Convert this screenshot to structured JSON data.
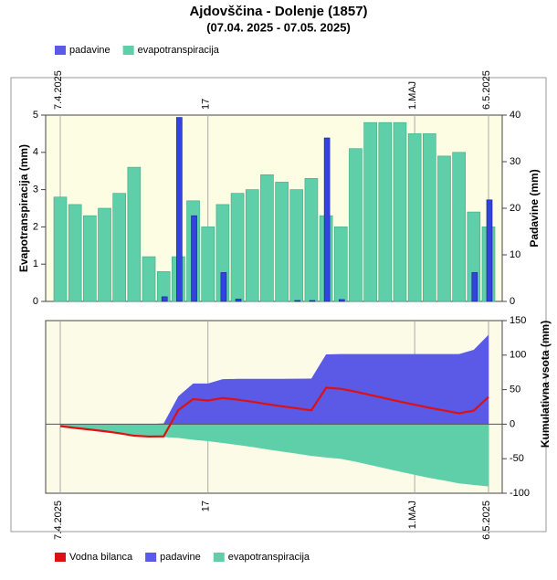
{
  "chart_data": [
    {
      "type": "bar",
      "title": "Ajdovščina - Dolenje (1857)",
      "subtitle": "(07.04. 2025 - 07.05. 2025)",
      "ylabel": "Evapotranspiracija (mm)",
      "y2label": "Padavine (mm)",
      "categories": [
        "7.4.2025",
        null,
        null,
        null,
        null,
        null,
        null,
        null,
        null,
        null,
        "17",
        null,
        null,
        null,
        null,
        null,
        null,
        null,
        null,
        null,
        null,
        null,
        null,
        null,
        "1.MAJ",
        null,
        null,
        null,
        null,
        "6.5.2025"
      ],
      "series": [
        {
          "name": "padavine",
          "color": "#5a5ae6",
          "axis": "y2",
          "values": [
            0,
            0,
            0,
            0,
            0,
            0,
            0,
            1,
            39.5,
            18.4,
            0,
            6.2,
            0.5,
            0,
            0,
            0,
            0.2,
            0.2,
            35.1,
            0.4,
            0,
            0,
            0,
            0,
            0,
            0,
            0,
            0,
            6.2,
            21.8
          ]
        },
        {
          "name": "evapotranspiracija",
          "color": "#5fcfaa",
          "values": [
            2.8,
            2.6,
            2.3,
            2.5,
            2.9,
            3.6,
            1.2,
            0.8,
            1.2,
            2.7,
            2.0,
            2.6,
            2.9,
            3.0,
            3.4,
            3.2,
            3.0,
            3.3,
            2.3,
            2.0,
            4.1,
            4.8,
            4.8,
            4.8,
            4.5,
            4.5,
            3.9,
            4.0,
            2.4,
            2.0
          ]
        }
      ],
      "ylim": [
        0,
        5
      ],
      "yticks": [
        0,
        1,
        2,
        3,
        4,
        5
      ],
      "y2lim": [
        0,
        40
      ],
      "y2ticks": [
        0,
        10,
        20,
        30,
        40
      ],
      "legend": "top"
    },
    {
      "type": "area",
      "ylabel": "Kumulativna vsota (mm)",
      "yaxis_side": "right",
      "categories": [
        "7.4.2025",
        null,
        null,
        null,
        null,
        null,
        null,
        null,
        null,
        null,
        "17",
        null,
        null,
        null,
        null,
        null,
        null,
        null,
        null,
        null,
        null,
        null,
        null,
        null,
        "1.MAJ",
        null,
        null,
        null,
        null,
        "6.5.2025"
      ],
      "series": [
        {
          "name": "Vodna bilanca",
          "color": "#e01010",
          "style": "line",
          "values": [
            -2.8,
            -5.4,
            -7.7,
            -10.2,
            -13.1,
            -16.7,
            -17.9,
            -17.7,
            20.6,
            36.3,
            34.3,
            37.9,
            35.5,
            32.5,
            29.1,
            25.9,
            23.1,
            20,
            52.8,
            51.2,
            47.1,
            42.3,
            37.5,
            32.7,
            28.2,
            23.7,
            19.8,
            15.8,
            19.6,
            39.4
          ]
        },
        {
          "name": "padavine",
          "color": "#5a5ae6",
          "style": "area",
          "values": [
            0,
            0,
            0,
            0,
            0,
            0,
            0,
            1,
            40.5,
            58.9,
            58.9,
            65.1,
            65.6,
            65.6,
            65.6,
            65.6,
            65.8,
            66,
            101.1,
            101.5,
            101.5,
            101.5,
            101.5,
            101.5,
            101.5,
            101.5,
            101.5,
            101.5,
            107.7,
            129.5
          ]
        },
        {
          "name": "evapotranspiracija",
          "color": "#5fcfaa",
          "style": "area",
          "values": [
            -2.8,
            -5.4,
            -7.7,
            -10.2,
            -13.1,
            -16.7,
            -17.9,
            -18.7,
            -19.9,
            -22.6,
            -24.6,
            -27.2,
            -30.1,
            -33.1,
            -36.5,
            -39.7,
            -42.7,
            -46.0,
            -48.3,
            -50.3,
            -54.4,
            -59.2,
            -64.0,
            -68.8,
            -73.3,
            -77.8,
            -81.7,
            -85.7,
            -88.1,
            -90.1
          ]
        }
      ],
      "ylim": [
        -100,
        150
      ],
      "yticks": [
        -100,
        -50,
        0,
        50,
        100,
        150
      ],
      "legend": "bottom"
    }
  ]
}
